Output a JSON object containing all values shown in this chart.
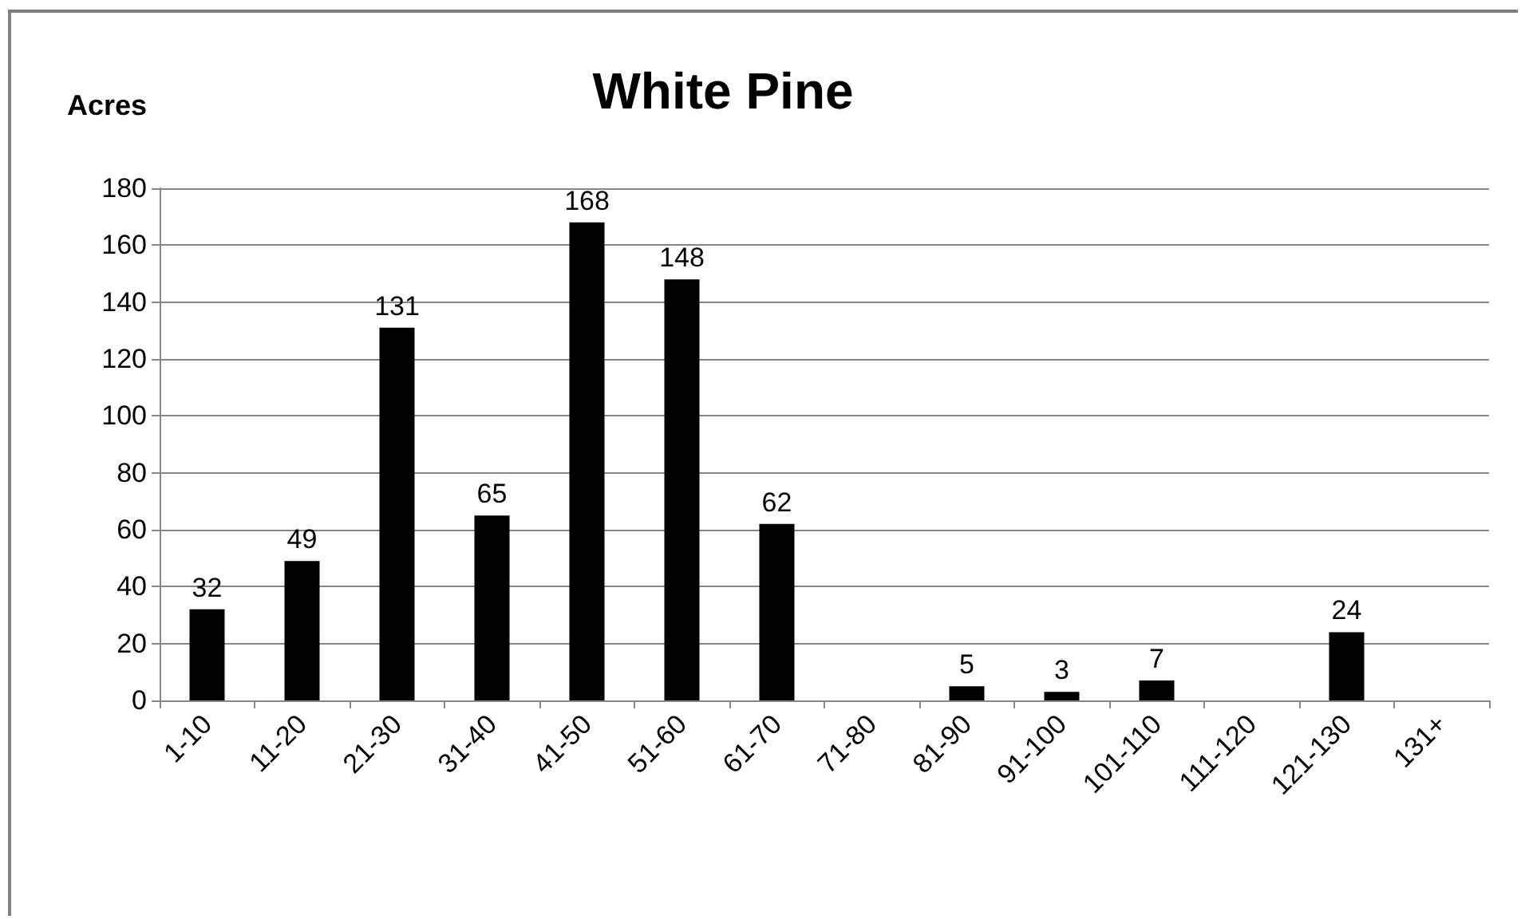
{
  "chart_data": {
    "type": "bar",
    "title": "White Pine",
    "ylabel": "Acres",
    "categories": [
      "1-10",
      "11-20",
      "21-30",
      "31-40",
      "41-50",
      "51-60",
      "61-70",
      "71-80",
      "81-90",
      "91-100",
      "101-110",
      "111-120",
      "121-130",
      "131+"
    ],
    "values": [
      32,
      49,
      131,
      65,
      168,
      148,
      62,
      0,
      5,
      3,
      7,
      0,
      24,
      0
    ],
    "value_labels": [
      "32",
      "49",
      "131",
      "65",
      "168",
      "148",
      "62",
      null,
      "5",
      "3",
      "7",
      null,
      "24",
      null
    ],
    "color": "#000000",
    "ylim": [
      0,
      180
    ],
    "yticks": [
      0,
      20,
      40,
      60,
      80,
      100,
      120,
      140,
      160,
      180
    ],
    "grid": "y"
  }
}
